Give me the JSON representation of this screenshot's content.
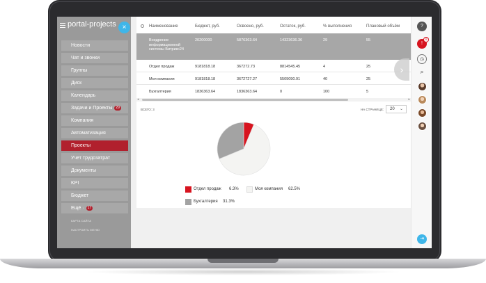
{
  "sidebar": {
    "title": "portal-projects",
    "close_label": "×",
    "items": [
      {
        "label": "Новости"
      },
      {
        "label": "Чат и звонки"
      },
      {
        "label": "Группы"
      },
      {
        "label": "Диск"
      },
      {
        "label": "Календарь"
      },
      {
        "label": "Задачи и Проекты",
        "badge": "29"
      },
      {
        "label": "Компания"
      },
      {
        "label": "Автоматизация"
      },
      {
        "label": "Проекты",
        "active": true
      },
      {
        "label": "Учет трудозатрат"
      },
      {
        "label": "Документы"
      },
      {
        "label": "KPI"
      },
      {
        "label": "Бюджет"
      },
      {
        "label": "Ещё ·",
        "badge": "17"
      }
    ],
    "sitemap": "КАРТА САЙТА",
    "configure_menu": "НАСТРОИТЬ МЕНЮ"
  },
  "table": {
    "columns": [
      "Наименование",
      "Бюджет, руб.",
      "Освоено, руб.",
      "Остаток, руб.",
      "% выполнения",
      "Плановый объём"
    ],
    "rows": [
      {
        "name": "Внедрение информационной системы Битрикс24",
        "budget": "20200000",
        "spent": "5876363.64",
        "rest": "14323636.36",
        "pct": "29",
        "plan": "55"
      },
      {
        "name": "Отдел продаж",
        "budget": "9181818.18",
        "spent": "367272.73",
        "rest": "8814545.45",
        "pct": "4",
        "plan": "25"
      },
      {
        "name": "Моя компания",
        "budget": "9181818.18",
        "spent": "3672727.27",
        "rest": "5509090.91",
        "pct": "40",
        "plan": "25"
      },
      {
        "name": "Бухгалтерия",
        "budget": "1836363.64",
        "spent": "1836363.64",
        "rest": "0",
        "pct": "100",
        "plan": "5"
      }
    ],
    "total_label": "ВСЕГО: 3",
    "per_page_label": "НА СТРАНИЦЕ:",
    "per_page_value": "20",
    "scroll_left": "◂",
    "scroll_right": "▸"
  },
  "chart_data": {
    "type": "pie",
    "title": "",
    "slices": [
      {
        "label": "Отдел продаж",
        "value": 6.3,
        "display": "6.3%",
        "color": "#d7141f"
      },
      {
        "label": "Моя компания",
        "value": 62.5,
        "display": "62.5%",
        "color": "#f4f4f2"
      },
      {
        "label": "Бухгалтерия",
        "value": 31.3,
        "display": "31.3%",
        "color": "#a3a3a3"
      }
    ]
  },
  "rightbar": {
    "help_icon": "?",
    "notify_icon": "!",
    "notify_badge": "0",
    "search_icon": "⌕",
    "exit_icon": "⇥"
  },
  "colors": {
    "accent_red": "#b1202d",
    "close_blue": "#3fb6e9",
    "exit_blue": "#3fb6e9"
  }
}
